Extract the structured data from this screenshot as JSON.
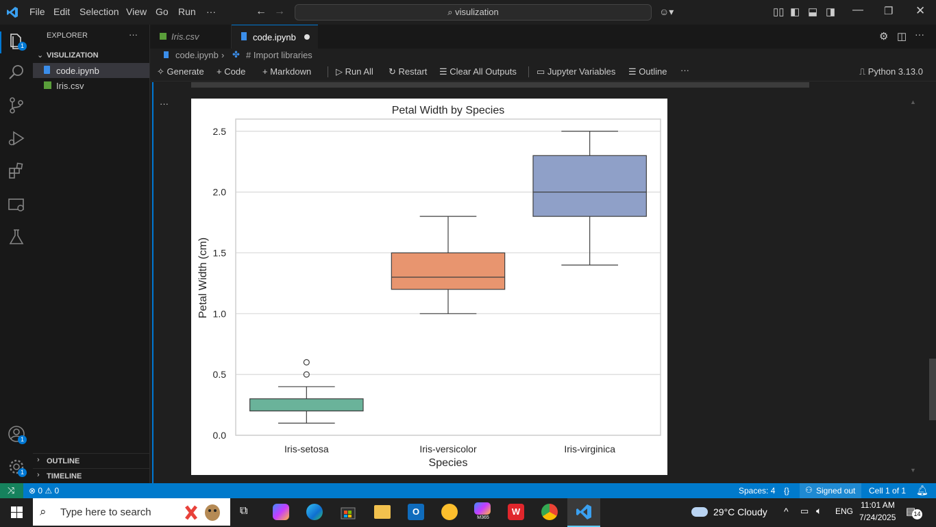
{
  "titlebar": {
    "menus": [
      "File",
      "Edit",
      "Selection",
      "View",
      "Go",
      "Run",
      "···"
    ],
    "search_text": "visulization"
  },
  "sidebar": {
    "header": "EXPLORER",
    "more": "···",
    "folder": "VISULIZATION",
    "files": [
      "code.ipynb",
      "Iris.csv"
    ],
    "outline": "OUTLINE",
    "timeline": "TIMELINE"
  },
  "badges": {
    "explorer": "1",
    "account": "1",
    "settings": "1"
  },
  "tabs": [
    {
      "label": "Iris.csv",
      "active": false
    },
    {
      "label": "code.ipynb",
      "active": true
    }
  ],
  "breadcrumb": {
    "file": "code.ipynb",
    "symbol": "# Import libraries"
  },
  "toolbar": {
    "generate": "Generate",
    "code": "Code",
    "markdown": "Markdown",
    "run_all": "Run All",
    "restart": "Restart",
    "clear": "Clear All Outputs",
    "variables": "Jupyter Variables",
    "outline": "Outline",
    "more": "···",
    "kernel": "Python 3.13.0"
  },
  "cell": {
    "more": "···"
  },
  "chart_data": {
    "type": "box",
    "title": "Petal Width by Species",
    "xlabel": "Species",
    "ylabel": "Petal Width (cm)",
    "ylim": [
      0.0,
      2.6
    ],
    "yticks": [
      "0.0",
      "0.5",
      "1.0",
      "1.5",
      "2.0",
      "2.5"
    ],
    "grid": true,
    "categories": [
      "Iris-setosa",
      "Iris-versicolor",
      "Iris-virginica"
    ],
    "boxes": [
      {
        "min": 0.1,
        "q1": 0.2,
        "median": 0.2,
        "q3": 0.3,
        "max": 0.4,
        "outliers": [
          0.5,
          0.6
        ],
        "color": "#6ab39a"
      },
      {
        "min": 1.0,
        "q1": 1.2,
        "median": 1.3,
        "q3": 1.5,
        "max": 1.8,
        "outliers": [],
        "color": "#e8956f"
      },
      {
        "min": 1.4,
        "q1": 1.8,
        "median": 2.0,
        "q3": 2.3,
        "max": 2.5,
        "outliers": [],
        "color": "#8fa0c8"
      }
    ]
  },
  "statusbar": {
    "remote": "⤨",
    "problems": "⊗ 0 ⚠ 0",
    "spaces": "Spaces: 4",
    "braces": "{}",
    "signed": "Signed out",
    "cell": "Cell 1 of 1"
  },
  "taskbar": {
    "search_placeholder": "Type here to search",
    "weather": "29°C  Cloudy",
    "lang": "ENG",
    "time": "11:01 AM",
    "date": "7/24/2025",
    "notifications": "14",
    "m365": "M365"
  },
  "colors": {
    "accent": "#0078d4",
    "statusbar": "#007acc"
  }
}
